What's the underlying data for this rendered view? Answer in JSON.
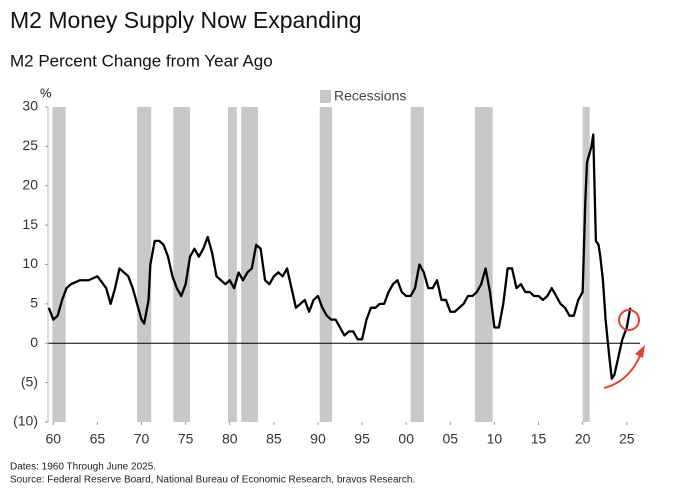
{
  "chart_data": {
    "type": "line",
    "title": "M2 Money Supply Now Expanding",
    "subtitle": "M2 Percent Change from Year Ago",
    "y_label": "%",
    "legend_label": "Recessions",
    "recession_color": "#c8c8c8",
    "line_color": "#000000",
    "notes": [
      "Dates: 1960 Through June 2025.",
      "Source: Federal Reserve Board, National Bureau of Economic Research, bravos Research."
    ],
    "xlim": [
      1959.4,
      2026.5
    ],
    "ylim": [
      -10,
      30
    ],
    "xticks": [
      {
        "value": 1960,
        "label": "60"
      },
      {
        "value": 1965,
        "label": "65"
      },
      {
        "value": 1970,
        "label": "70"
      },
      {
        "value": 1975,
        "label": "75"
      },
      {
        "value": 1980,
        "label": "80"
      },
      {
        "value": 1985,
        "label": "85"
      },
      {
        "value": 1990,
        "label": "90"
      },
      {
        "value": 1995,
        "label": "95"
      },
      {
        "value": 2000,
        "label": "00"
      },
      {
        "value": 2005,
        "label": "05"
      },
      {
        "value": 2010,
        "label": "10"
      },
      {
        "value": 2015,
        "label": "15"
      },
      {
        "value": 2020,
        "label": "20"
      },
      {
        "value": 2025,
        "label": "25"
      }
    ],
    "yticks": [
      30,
      25,
      20,
      15,
      10,
      5,
      0,
      {
        "value": -5,
        "label": "(5)"
      },
      {
        "value": -10,
        "label": "(10)"
      }
    ],
    "recessions": [
      [
        1959.9,
        1961.4
      ],
      [
        1969.5,
        1971.1
      ],
      [
        1973.6,
        1975.5
      ],
      [
        1979.8,
        1980.8
      ],
      [
        1981.3,
        1983.2
      ],
      [
        1990.2,
        1991.6
      ],
      [
        2000.5,
        2002.0
      ],
      [
        2007.8,
        2009.8
      ],
      [
        2020.0,
        2020.8
      ]
    ],
    "x": [
      1959.5,
      1960,
      1960.5,
      1961,
      1961.5,
      1962,
      1963,
      1964,
      1965,
      1966,
      1966.5,
      1967,
      1967.5,
      1968,
      1968.5,
      1969,
      1970,
      1970.3,
      1970.8,
      1971,
      1971.5,
      1972,
      1972.5,
      1973,
      1973.5,
      1974,
      1974.5,
      1975,
      1975.5,
      1976,
      1976.5,
      1977,
      1977.5,
      1978,
      1978.5,
      1979,
      1979.5,
      1980,
      1980.5,
      1981,
      1981.5,
      1982,
      1982.5,
      1983,
      1983.5,
      1984,
      1984.5,
      1985,
      1985.5,
      1986,
      1986.5,
      1987,
      1987.5,
      1988,
      1988.5,
      1989,
      1989.5,
      1990,
      1990.5,
      1991,
      1991.5,
      1992,
      1992.5,
      1993,
      1993.5,
      1994,
      1994.5,
      1995,
      1995.5,
      1996,
      1996.5,
      1997,
      1997.5,
      1998,
      1998.5,
      1999,
      1999.5,
      2000,
      2000.5,
      2001,
      2001.5,
      2002,
      2002.5,
      2003,
      2003.5,
      2004,
      2004.5,
      2005,
      2005.5,
      2006,
      2006.5,
      2007,
      2007.5,
      2008,
      2008.5,
      2009,
      2009.5,
      2010,
      2010.5,
      2011,
      2011.5,
      2012,
      2012.5,
      2013,
      2013.5,
      2014,
      2014.5,
      2015,
      2015.5,
      2016,
      2016.5,
      2017,
      2017.5,
      2018,
      2018.5,
      2019,
      2019.5,
      2020,
      2020.3,
      2020.5,
      2021,
      2021.2,
      2021.5,
      2021.8,
      2022,
      2022.3,
      2022.6,
      2023,
      2023.3,
      2023.6,
      2024,
      2024.5,
      2025,
      2025.4
    ],
    "values": [
      4.5,
      3,
      3.5,
      5.5,
      7,
      7.5,
      8,
      8,
      8.5,
      7,
      5,
      7,
      9.5,
      9,
      8.5,
      7,
      3,
      2.5,
      5.5,
      10,
      13,
      13,
      12.5,
      11,
      8.5,
      7,
      6,
      7.5,
      11,
      12,
      11,
      12,
      13.5,
      11.5,
      8.5,
      8,
      7.5,
      8,
      7,
      9,
      8,
      9,
      9.5,
      12.5,
      12,
      8,
      7.5,
      8.5,
      9,
      8.5,
      9.5,
      7,
      4.5,
      5,
      5.5,
      4,
      5.5,
      6,
      4.5,
      3.5,
      3,
      3,
      2,
      1,
      1.5,
      1.5,
      0.5,
      0.5,
      3,
      4.5,
      4.5,
      5,
      5,
      6.5,
      7.5,
      8,
      6.5,
      6,
      6,
      7,
      10,
      9,
      7,
      7,
      8,
      5.5,
      5.5,
      4,
      4,
      4.5,
      5,
      6,
      6,
      6.5,
      7.5,
      9.5,
      6.5,
      2,
      2,
      5,
      9.5,
      9.5,
      7,
      7.5,
      6.5,
      6.5,
      6,
      6,
      5.5,
      6,
      7,
      6,
      5,
      4.5,
      3.5,
      3.5,
      5.5,
      6.5,
      18,
      23,
      25,
      26.5,
      13,
      12.5,
      11,
      8,
      3,
      -1.5,
      -4.5,
      -4,
      -2,
      0.5,
      2,
      4.5
    ]
  }
}
